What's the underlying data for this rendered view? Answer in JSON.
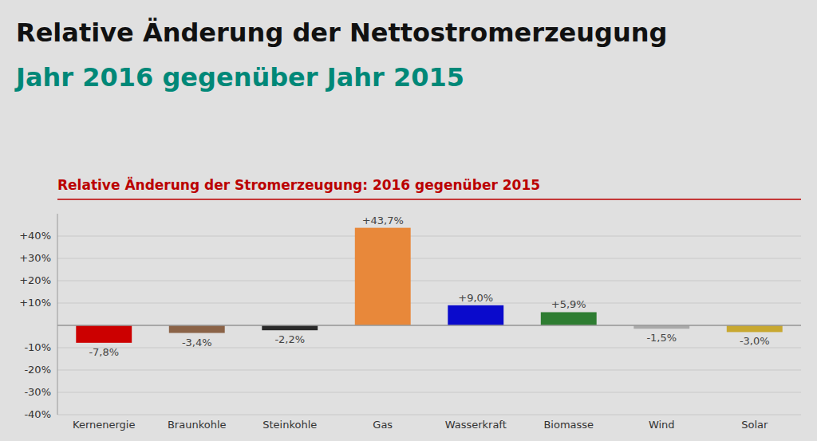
{
  "chart_data": {
    "type": "bar",
    "title": "Relative Änderung der Nettostromerzeugung",
    "subtitle": "Jahr 2016 gegenüber Jahr 2015",
    "annotations": [
      "Relative Änderung der Stromerzeugung: 2016 gegenüber 2015"
    ],
    "categories": [
      "Kernenergie",
      "Braunkohle",
      "Steinkohle",
      "Gas",
      "Wasserkraft",
      "Biomasse",
      "Wind",
      "Solar"
    ],
    "values": [
      -7.8,
      -3.4,
      -2.2,
      43.7,
      9.0,
      5.9,
      -1.5,
      -3.0
    ],
    "value_labels": [
      "-7,8%",
      "-3,4%",
      "-2,2%",
      "+43,7%",
      "+9,0%",
      "+5,9%",
      "-1,5%",
      "-3,0%"
    ],
    "colors": [
      "#cc0000",
      "#8b6347",
      "#2a2a2a",
      "#e8883a",
      "#0a0acc",
      "#2e7d32",
      "#aaaaaa",
      "#c8a830"
    ],
    "ylim": [
      -40,
      50
    ],
    "yticks": [
      {
        "value": -40,
        "label": "-40%"
      },
      {
        "value": -30,
        "label": "-30%"
      },
      {
        "value": -20,
        "label": "-20%"
      },
      {
        "value": -10,
        "label": "-10%"
      },
      {
        "value": 0,
        "label": null
      },
      {
        "value": 10,
        "label": "+10%"
      },
      {
        "value": 20,
        "label": "+20%"
      },
      {
        "value": 30,
        "label": "+30%"
      },
      {
        "value": 40,
        "label": "+40%"
      }
    ],
    "grid": true,
    "data_labels": true
  }
}
